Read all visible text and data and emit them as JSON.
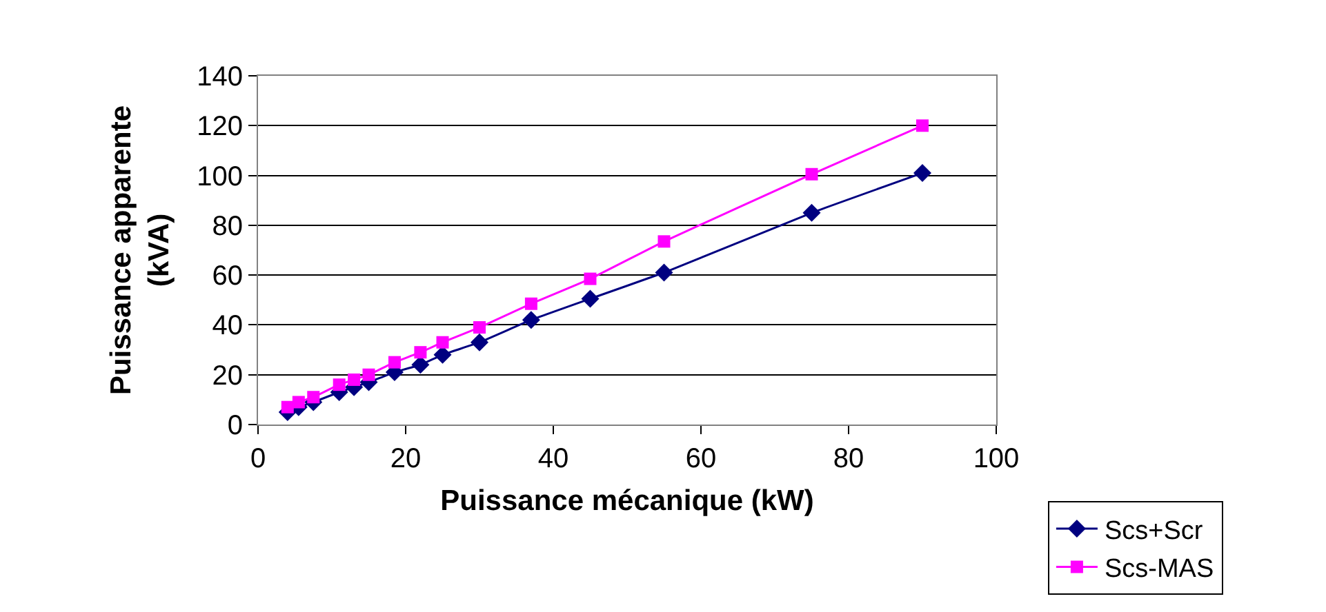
{
  "chart_data": {
    "type": "line",
    "xlabel": "Puissance mécanique (kW)",
    "ylabel": "Puissance apparente\n(kVA)",
    "x": [
      4,
      5.5,
      7.5,
      11,
      13,
      15,
      18.5,
      22,
      25,
      30,
      37,
      45,
      55,
      75,
      90
    ],
    "series": [
      {
        "name": "Scs+Scr",
        "color": "#000080",
        "marker": "diamond",
        "values": [
          5,
          7,
          9,
          13,
          15,
          17,
          21,
          24,
          28,
          33,
          42,
          50.5,
          61,
          85,
          101
        ]
      },
      {
        "name": "Scs-MAS",
        "color": "#ff00ff",
        "marker": "square",
        "values": [
          7,
          9,
          11,
          16,
          18,
          20,
          25,
          29,
          33,
          39,
          48.5,
          58.5,
          73.5,
          100.5,
          120
        ]
      }
    ],
    "xlim": [
      0,
      100
    ],
    "xticks": [
      0,
      20,
      40,
      60,
      80,
      100
    ],
    "ylim": [
      0,
      140
    ],
    "yticks": [
      0,
      20,
      40,
      60,
      80,
      100,
      120,
      140
    ],
    "grid": "y",
    "legend": "bottom right",
    "line_style": "solid"
  }
}
